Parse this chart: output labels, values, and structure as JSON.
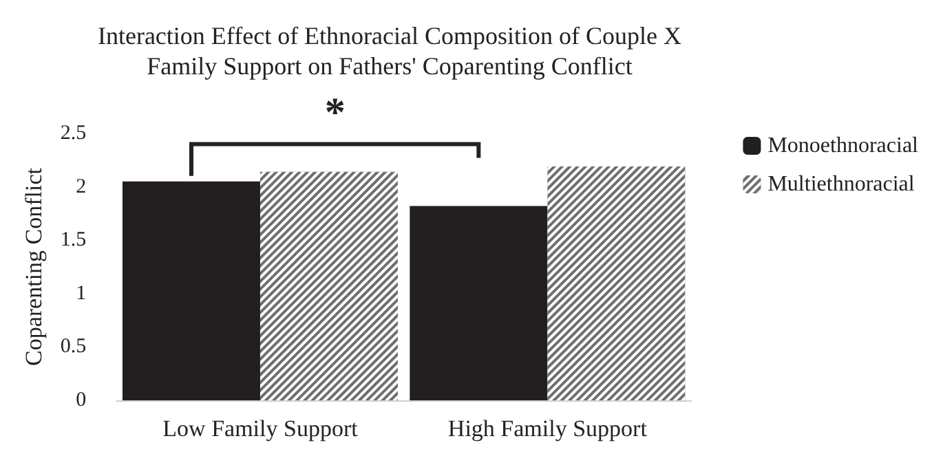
{
  "chart_data": {
    "type": "bar",
    "title": "Interaction Effect of Ethnoracial Composition of Couple X\nFamily Support on Fathers' Coparenting Conflict",
    "ylabel": "Coparenting Conflict",
    "categories": [
      "Low Family Support",
      "High Family Support"
    ],
    "series": [
      {
        "name": "Monoethnoracial",
        "color": "#231f20",
        "values": [
          2.05,
          1.82
        ]
      },
      {
        "name": "Multiethnoracial",
        "color": "#6e6e6e",
        "values": [
          2.14,
          2.19
        ]
      }
    ],
    "ylim": [
      0,
      2.5
    ],
    "yticks": [
      0,
      0.5,
      1,
      1.5,
      2,
      2.5
    ],
    "grid": false,
    "legend": "right",
    "annotations": [
      "*"
    ]
  }
}
